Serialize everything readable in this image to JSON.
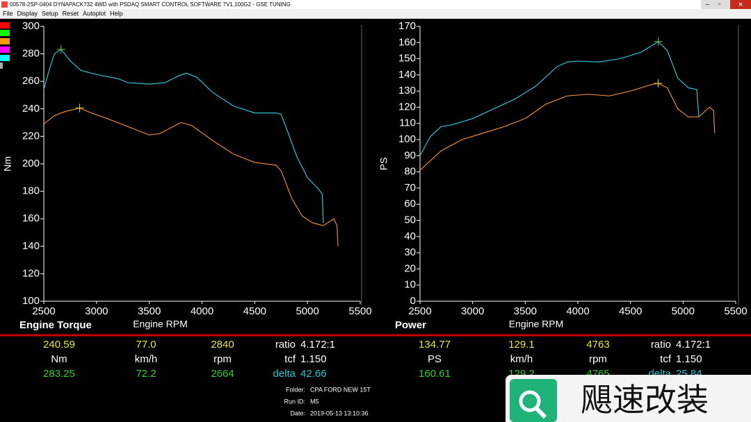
{
  "window": {
    "title": "00578-2SP-0404 DYNAPACK?32 4WD with PSDAQ SMART CONTROL SOFTWARE 7V1.100G2 - GSE TUNING",
    "menu": [
      "File",
      "Display",
      "Setup",
      "Reset",
      "Autoplot",
      "Help"
    ]
  },
  "chart_data": [
    {
      "type": "line",
      "title": "Engine Torque",
      "xlabel": "Engine RPM",
      "ylabel": "Nm",
      "xlim": [
        2500,
        5500
      ],
      "xticks": [
        2500,
        3000,
        3500,
        4000,
        4500,
        5000,
        5500
      ],
      "ylim": [
        100,
        300
      ],
      "yticks": [
        100,
        120,
        140,
        160,
        180,
        200,
        220,
        240,
        260,
        280,
        300
      ],
      "series": [
        {
          "color": "#2ec4d4",
          "x": [
            2500,
            2550,
            2600,
            2664,
            2750,
            2850,
            3000,
            3200,
            3300,
            3500,
            3650,
            3750,
            3850,
            3950,
            4100,
            4300,
            4500,
            4700,
            4750,
            4800,
            4900,
            5000,
            5100,
            5140,
            5150
          ],
          "values": [
            254,
            268,
            280,
            283.25,
            275,
            268,
            265,
            262,
            259,
            258,
            259,
            263,
            266,
            263,
            252,
            242,
            237,
            237,
            236,
            226,
            205,
            190,
            182,
            178,
            157
          ]
        },
        {
          "color": "#e8893a",
          "x": [
            2500,
            2600,
            2700,
            2840,
            2950,
            3100,
            3300,
            3500,
            3600,
            3700,
            3800,
            3900,
            4100,
            4300,
            4500,
            4700,
            4750,
            4850,
            4950,
            5050,
            5150,
            5250,
            5280,
            5290
          ],
          "values": [
            229,
            235,
            238,
            240.59,
            237,
            233,
            227,
            221,
            222,
            226,
            230,
            228,
            217,
            207,
            201,
            199,
            195,
            175,
            162,
            157,
            155,
            160,
            155,
            140
          ]
        }
      ]
    },
    {
      "type": "line",
      "title": "Power",
      "xlabel": "Engine RPM",
      "ylabel": "PS",
      "xlim": [
        2500,
        5500
      ],
      "xticks": [
        2500,
        3000,
        3500,
        4000,
        4500,
        5000,
        5500
      ],
      "ylim": [
        0,
        170
      ],
      "yticks": [
        0,
        10,
        20,
        30,
        40,
        50,
        60,
        70,
        80,
        90,
        100,
        110,
        120,
        130,
        140,
        150,
        160,
        170
      ],
      "series": [
        {
          "color": "#2ec4d4",
          "x": [
            2500,
            2600,
            2700,
            2800,
            3000,
            3200,
            3400,
            3600,
            3800,
            3900,
            4000,
            4200,
            4400,
            4600,
            4765,
            4850,
            4950,
            5050,
            5130,
            5150
          ],
          "values": [
            90,
            102,
            108,
            109,
            113,
            119,
            125,
            133,
            145,
            148,
            148.5,
            148,
            150,
            154,
            160.61,
            155,
            138,
            132,
            131,
            114
          ]
        },
        {
          "color": "#e8893a",
          "x": [
            2500,
            2700,
            2900,
            3100,
            3300,
            3500,
            3700,
            3900,
            4100,
            4300,
            4500,
            4700,
            4763,
            4850,
            4950,
            5050,
            5150,
            5250,
            5290,
            5300
          ],
          "values": [
            81,
            93,
            100,
            104,
            108,
            113,
            122,
            127,
            128,
            127,
            130,
            134,
            134.77,
            132,
            119,
            114,
            114,
            120,
            118,
            104
          ]
        }
      ]
    }
  ],
  "readouts": [
    [
      [
        "240.59",
        "77.0",
        "2840",
        "ratio",
        "4.172:1"
      ],
      [
        "Nm",
        "km/h",
        "rpm",
        "tcf",
        "1.150"
      ],
      [
        "283.25",
        "72.2",
        "2664",
        "delta",
        "42.66"
      ]
    ],
    [
      [
        "134.77",
        "129.1",
        "4763",
        "ratio",
        "4.172:1"
      ],
      [
        "PS",
        "km/h",
        "rpm",
        "tcf",
        "1.150"
      ],
      [
        "160.61",
        "129.2",
        "4765",
        "delta",
        "25.84"
      ]
    ]
  ],
  "run_info": [
    [
      "Folder:",
      "CPA FORD NEW 15T"
    ],
    [
      "Run ID:",
      "M5"
    ],
    [
      "Date:",
      "2019-05-13 13:10:36"
    ]
  ],
  "watermark": "飓速改装"
}
